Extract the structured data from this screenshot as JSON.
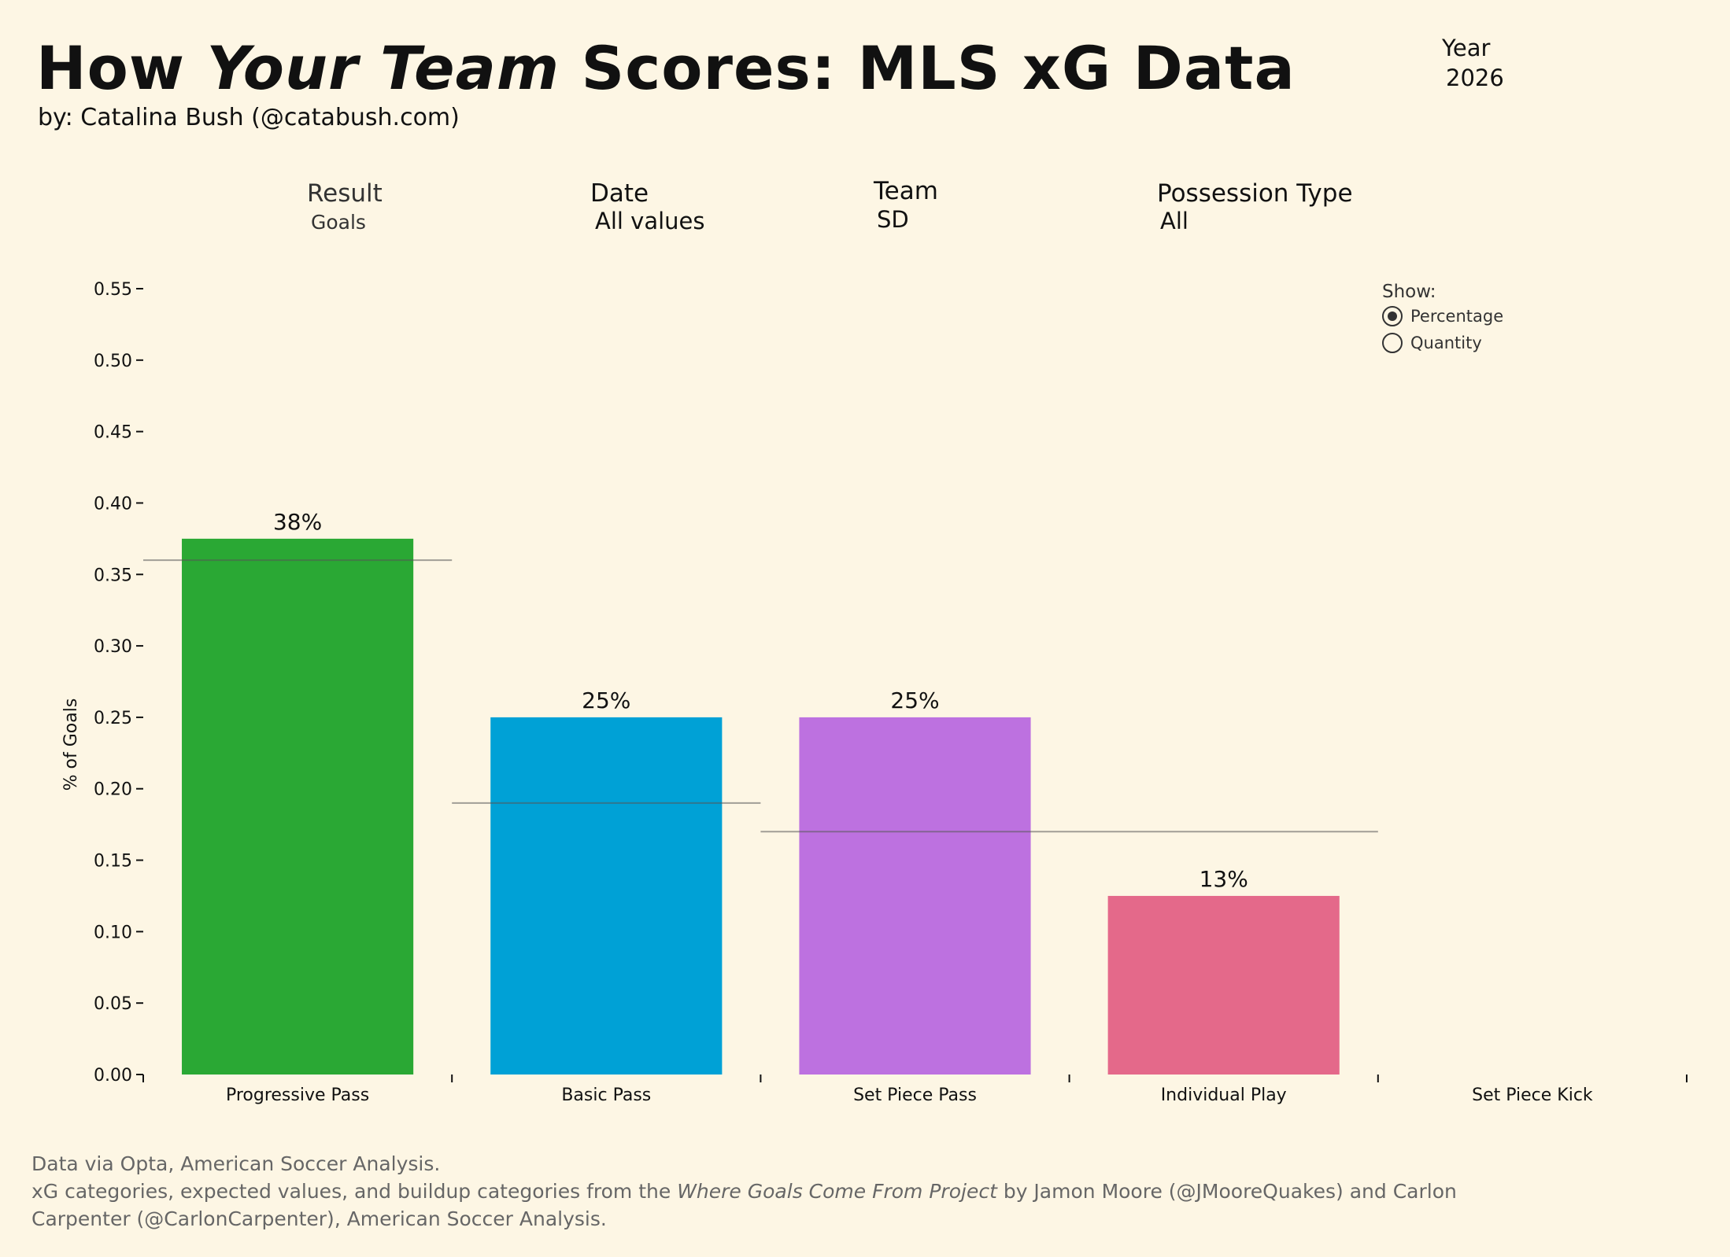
{
  "header": {
    "title_part1": "How ",
    "title_emph": "Your Team",
    "title_part2": "  Scores: MLS xG Data",
    "subtitle": "by: Catalina Bush (@catabush.com)"
  },
  "year": {
    "label": "Year",
    "value": "2026"
  },
  "filters": {
    "result": {
      "label": "Result",
      "value": "Goals"
    },
    "date": {
      "label": "Date",
      "value": "All values"
    },
    "team": {
      "label": "Team",
      "value": "SD"
    },
    "possession": {
      "label": "Possession Type",
      "value": "All"
    }
  },
  "show": {
    "label": "Show:",
    "options": [
      "Percentage",
      "Quantity"
    ],
    "selected": "Percentage"
  },
  "chart_data": {
    "type": "bar",
    "categories": [
      "Progressive Pass",
      "Basic Pass",
      "Set Piece Pass",
      "Individual Play",
      "Set Piece Kick"
    ],
    "values": [
      0.375,
      0.25,
      0.25,
      0.125,
      0
    ],
    "data_labels": [
      "38%",
      "25%",
      "25%",
      "13%",
      ""
    ],
    "colors": [
      "#2aa834",
      "#00a1d6",
      "#bd71e0",
      "#e4698a",
      "#999999"
    ],
    "expected_values": [
      {
        "categories": [
          "Progressive Pass"
        ],
        "value": 0.36
      },
      {
        "categories": [
          "Basic Pass"
        ],
        "value": 0.19
      },
      {
        "categories": [
          "Set Piece Pass",
          "Individual Play"
        ],
        "value": 0.17
      }
    ],
    "ylabel": "% of Goals",
    "xlabel": "",
    "ylim": [
      0,
      0.55
    ],
    "yticks": [
      "0.00",
      "0.05",
      "0.10",
      "0.15",
      "0.20",
      "0.25",
      "0.30",
      "0.35",
      "0.40",
      "0.45",
      "0.50",
      "0.55"
    ],
    "grid": false
  },
  "footer": {
    "line1": "Data via Opta, American Soccer Analysis.",
    "line2_pre": "xG categories, expected values, and buildup categories from the ",
    "line2_emph": "Where Goals Come From Project",
    "line2_post": " by Jamon Moore (@JMooreQuakes) and Carlon",
    "line3": "Carpenter (@CarlonCarpenter), American Soccer Analysis."
  }
}
